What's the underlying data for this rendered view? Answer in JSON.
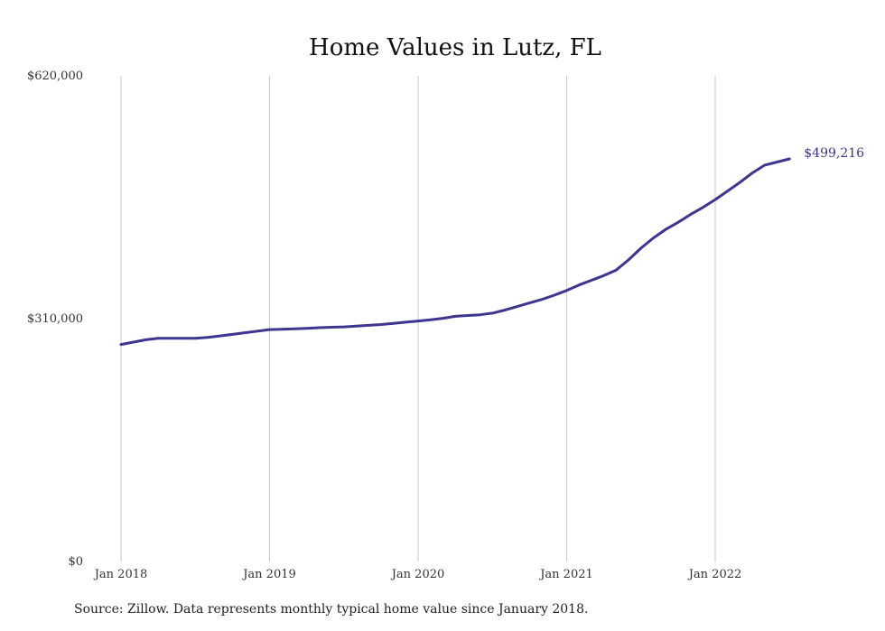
{
  "chart_data": {
    "type": "line",
    "title": "Home Values in Lutz, FL",
    "xlabel": "",
    "ylabel": "",
    "x_ticks": [
      "Jan 2018",
      "Jan 2019",
      "Jan 2020",
      "Jan 2021",
      "Jan 2022"
    ],
    "y_ticks": [
      "$0",
      "$310,000",
      "$620,000"
    ],
    "ylim": [
      0,
      620000
    ],
    "grid": "vertical",
    "line_color": "#3d3590",
    "end_label": "$499,216",
    "series": [
      {
        "x": [
          "2018-01",
          "2018-02",
          "2018-03",
          "2018-04",
          "2018-05",
          "2018-06",
          "2018-07",
          "2018-08",
          "2018-09",
          "2018-10",
          "2018-11",
          "2018-12",
          "2019-01",
          "2019-02",
          "2019-03",
          "2019-04",
          "2019-05",
          "2019-06",
          "2019-07",
          "2019-08",
          "2019-09",
          "2019-10",
          "2019-11",
          "2019-12",
          "2020-01",
          "2020-02",
          "2020-03",
          "2020-04",
          "2020-05",
          "2020-06",
          "2020-07",
          "2020-08",
          "2020-09",
          "2020-10",
          "2020-11",
          "2020-12",
          "2021-01",
          "2021-02",
          "2021-03",
          "2021-04",
          "2021-05",
          "2021-06",
          "2021-07",
          "2021-08",
          "2021-09",
          "2021-10",
          "2021-11",
          "2021-12",
          "2022-01",
          "2022-02",
          "2022-03",
          "2022-04",
          "2022-05",
          "2022-06",
          "2022-07"
        ],
        "values": [
          277000,
          280000,
          283000,
          285000,
          285000,
          285000,
          285000,
          286000,
          288000,
          290000,
          292000,
          294000,
          296000,
          296500,
          297000,
          297500,
          298500,
          299000,
          299500,
          300500,
          301500,
          302500,
          304000,
          305500,
          307000,
          308500,
          310500,
          313000,
          314000,
          315000,
          317000,
          321000,
          325500,
          330000,
          334500,
          340000,
          346000,
          353000,
          359000,
          365000,
          372000,
          385000,
          400000,
          413000,
          424000,
          433000,
          443000,
          452000,
          462000,
          473000,
          484000,
          496000,
          506000,
          510000,
          514000
        ]
      }
    ]
  },
  "footer": {
    "source": "Source: Zillow. Data represents monthly typical home value since January 2018."
  }
}
